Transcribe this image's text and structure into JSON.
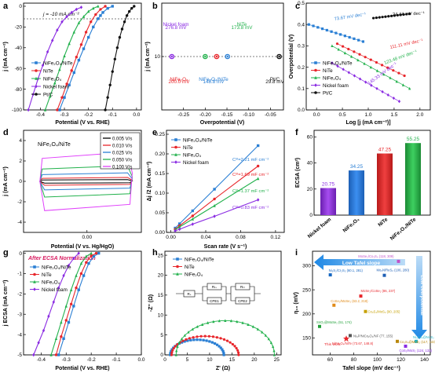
{
  "colors": {
    "nfo": "#2a7fd4",
    "nite": "#e8262b",
    "nife": "#22b14c",
    "nf": "#8a2be2",
    "ptc": "#111111",
    "bg": "#ffffff"
  },
  "panels": {
    "a": {
      "letter": "a",
      "xlabel": "Potential (V vs. RHE)",
      "ylabel": "j (mA cm⁻²)",
      "annotation": "j = -10 mA cm⁻²",
      "xticks": [
        "-0.4",
        "-0.3",
        "-0.2",
        "-0.1",
        "0.0"
      ],
      "yticks": [
        "0",
        "-20",
        "-40",
        "-60",
        "-80",
        "-100"
      ],
      "legend": [
        "NiFe₂O₄/NiTe",
        "NiTe",
        "NiFe₂O₄",
        "Nickel foam",
        "Pt/C"
      ]
    },
    "b": {
      "letter": "b",
      "xlabel": "Overpotential (V)",
      "ylabel": "j (mA cm⁻²)",
      "xticks": [
        "-0.25",
        "-0.20",
        "-0.15",
        "-0.10",
        "-0.05"
      ],
      "yticks": [
        "10"
      ],
      "labels": [
        {
          "name": "Nickel foam",
          "value": "276.8 mV"
        },
        {
          "name": "NiTe",
          "value": "173.8 mV"
        },
        {
          "name": "NiFe₂O₄",
          "value": "200.0 mV"
        },
        {
          "name": "NiFe₂O₄/NiTe",
          "value": "148.8 mV"
        },
        {
          "name": "Pt/C",
          "value": "29.8 mV"
        }
      ]
    },
    "c": {
      "letter": "c",
      "xlabel": "Log [j (mA cm⁻²)]",
      "ylabel": "Overpotential (V)",
      "xticks": [
        "0.0",
        "0.5",
        "1.0",
        "1.5",
        "2.0"
      ],
      "yticks": [
        "0.0",
        "0.1",
        "0.2",
        "0.3",
        "0.4",
        "0.5"
      ],
      "slopes": [
        "73.67 mV dec⁻¹",
        "24.44 mV dec⁻¹",
        "111.11 mV dec⁻¹",
        "123.48 mV dec⁻¹",
        "145.33 mV dec⁻¹"
      ],
      "legend": [
        "NiFe₂O₄/NiTe",
        "NiTe",
        "NiFe₂O₄",
        "Nickel foam",
        "Pt/C"
      ]
    },
    "d": {
      "letter": "d",
      "xlabel": "Potential (V vs. Hg/HgO)",
      "ylabel": "j (mA cm⁻²)",
      "inset": "NiFe₂O₄/NiTe",
      "xticks": [
        "0.00"
      ],
      "yticks": [
        "4",
        "2",
        "0",
        "-2",
        "-4"
      ],
      "legend": [
        "0.005 V/s",
        "0.010 V/s",
        "0.025 V/s",
        "0.050 V/s",
        "0.100 V/s"
      ]
    },
    "e": {
      "letter": "e",
      "xlabel": "Scan rate (V s⁻¹)",
      "ylabel": "Δj /2 (mA cm⁻²)",
      "xticks": [
        "0.00",
        "0.04",
        "0.08",
        "0.12"
      ],
      "yticks": [
        "0.00",
        "0.05",
        "0.10",
        "0.15",
        "0.20",
        "0.25"
      ],
      "legend": [
        "NiFe₂O₄/NiTe",
        "NiTe",
        "NiFe₂O₄",
        "Nickel foam"
      ],
      "cdl": [
        "Cᵈˡ=2.21 mF cm⁻²",
        "Cᵈˡ=1.69 mF cm⁻²",
        "Cᵈˡ=1.37 mF cm⁻²",
        "Cᵈˡ=0.83 mF cm⁻²"
      ]
    },
    "f": {
      "letter": "f",
      "ylabel": "ECSA (cm²)",
      "yticks": [
        "0",
        "20",
        "40",
        "60"
      ],
      "categories": [
        "Nickel foam",
        "NiFe₂O₄",
        "NiTe",
        "NiFe₂O₄/NiTe"
      ],
      "value_labels": [
        "20.75",
        "34.25",
        "47.25",
        "55.25"
      ]
    },
    "g": {
      "letter": "g",
      "xlabel": "Potential (V vs. RHE)",
      "ylabel": "j ECSA (mA cm⁻²)",
      "title": "After ECSA Normalization",
      "xticks": [
        "-0.4",
        "-0.3",
        "-0.2",
        "-0.1",
        "0.0"
      ],
      "yticks": [
        "0",
        "-1",
        "-2",
        "-3",
        "-4",
        "-5"
      ],
      "legend": [
        "NiFe₂O₄/NiTe",
        "NiTe",
        "NiFe₂O₄",
        "Nickel foam"
      ]
    },
    "h": {
      "letter": "h",
      "xlabel": "Z' (Ω)",
      "ylabel": "-Z'' (Ω)",
      "xticks": [
        "0",
        "5",
        "10",
        "15",
        "20",
        "25"
      ],
      "yticks": [
        "0",
        "5",
        "10",
        "15",
        "20",
        "25"
      ],
      "legend": [
        "NiFe₂O₄/NiTe",
        "NiTe",
        "NiFe₂O₄"
      ],
      "circuit": [
        "Rₛ",
        "Rₜₛ",
        "CPE1",
        "Rₜₜ",
        "CPE2"
      ]
    },
    "i": {
      "letter": "i",
      "xlabel": "Tafel slope (mV dec⁻¹)",
      "ylabel": "η₁₀ (mV)",
      "arrow_h": "Low Tafel slope",
      "arrow_v": "Low overpotential",
      "xticks": [
        "60",
        "80",
        "100",
        "120",
        "140"
      ],
      "yticks": [
        "150",
        "200",
        "250",
        "300"
      ],
      "refs": [
        {
          "label": "MoSe₂/Co₃S₄ (118, 309)",
          "color": "#c052c8"
        },
        {
          "label": "Ni₃S₂/Cr₂S₃ (60.1, 281)",
          "color": "#1565c0"
        },
        {
          "label": "Mo₂N/ReS₂ (106, 280)",
          "color": "#1e5fb5"
        },
        {
          "label": "MoSe₂/CoSe₂ (86, 237)",
          "color": "#e8262b"
        },
        {
          "label": "CoSe₂/MoSe₂ (63.2, 218)",
          "color": "#e08a18"
        },
        {
          "label": "Co₃S₄/MoS₂ (90, 205)",
          "color": "#c6a000"
        },
        {
          "label": "SnO₂@MoSe₂ (51, 174)",
          "color": "#22a13a"
        },
        {
          "label": "Ni₃Se₄@Ni₃S₂ (133, 143)",
          "color": "#20b5c8"
        },
        {
          "label": "Ni₃P/NiCo₂O₄/NF (77, 155)",
          "color": "#555555"
        },
        {
          "label": "Co₃S₄@MoS₂ (117, 143)",
          "color": "#b8860b"
        },
        {
          "label": "NiFe₂O₄/NiTe (73.67, 148.8)",
          "color": "#e8262b"
        },
        {
          "label": "CoS₂/MoS₂ (124, 133)",
          "color": "#8a2be2"
        }
      ],
      "this_work": "This work"
    }
  },
  "chart_data": [
    {
      "panel": "a",
      "type": "line",
      "title": "",
      "xlabel": "Potential (V vs. RHE)",
      "ylabel": "j (mA cm⁻²)",
      "xlim": [
        -0.47,
        0.02
      ],
      "ylim": [
        -100,
        3
      ],
      "series": [
        {
          "name": "NiFe₂O₄/NiTe",
          "x": [
            -0.32,
            -0.3,
            -0.28,
            -0.26,
            -0.24,
            -0.22,
            -0.2,
            -0.18,
            -0.16,
            -0.15,
            -0.14,
            -0.12,
            -0.1
          ],
          "y": [
            -100,
            -88,
            -76,
            -64,
            -52,
            -41,
            -30,
            -20,
            -12,
            -9,
            -6,
            -2,
            0
          ]
        },
        {
          "name": "NiTe",
          "x": [
            -0.33,
            -0.31,
            -0.29,
            -0.27,
            -0.25,
            -0.23,
            -0.21,
            -0.19,
            -0.17,
            -0.15,
            -0.13
          ],
          "y": [
            -100,
            -88,
            -75,
            -62,
            -49,
            -37,
            -25,
            -15,
            -8,
            -3,
            0
          ]
        },
        {
          "name": "NiFe₂O₄",
          "x": [
            -0.38,
            -0.36,
            -0.34,
            -0.32,
            -0.3,
            -0.28,
            -0.26,
            -0.24,
            -0.22,
            -0.2,
            -0.18,
            -0.16
          ],
          "y": [
            -100,
            -87,
            -74,
            -61,
            -48,
            -36,
            -25,
            -16,
            -10,
            -5,
            -2,
            0
          ]
        },
        {
          "name": "Nickel foam",
          "x": [
            -0.45,
            -0.43,
            -0.41,
            -0.39,
            -0.37,
            -0.35,
            -0.33,
            -0.31,
            -0.29,
            -0.27,
            -0.25,
            -0.23
          ],
          "y": [
            -100,
            -85,
            -70,
            -57,
            -44,
            -33,
            -23,
            -15,
            -10,
            -6,
            -3,
            -1
          ]
        },
        {
          "name": "Pt/C",
          "x": [
            -0.13,
            -0.12,
            -0.11,
            -0.1,
            -0.09,
            -0.08,
            -0.07,
            -0.06,
            -0.05,
            -0.04,
            -0.03,
            -0.02,
            -0.01
          ],
          "y": [
            -100,
            -88,
            -76,
            -63,
            -51,
            -40,
            -30,
            -22,
            -15,
            -9,
            -5,
            -2,
            0
          ]
        }
      ]
    },
    {
      "panel": "b",
      "type": "scatter",
      "title": "",
      "xlabel": "Overpotential (V)",
      "ylabel": "j (mA cm⁻²)",
      "xlim": [
        -0.3,
        -0.02
      ],
      "series": [
        {
          "name": "Nickel foam",
          "x": [
            -0.2768
          ],
          "y": [
            10
          ]
        },
        {
          "name": "NiFe₂O₄",
          "x": [
            -0.2
          ],
          "y": [
            10
          ]
        },
        {
          "name": "NiTe",
          "x": [
            -0.1738
          ],
          "y": [
            10
          ]
        },
        {
          "name": "NiFe₂O₄/NiTe",
          "x": [
            -0.1488
          ],
          "y": [
            10
          ]
        },
        {
          "name": "Pt/C",
          "x": [
            -0.0298
          ],
          "y": [
            10
          ]
        }
      ]
    },
    {
      "panel": "c",
      "type": "scatter",
      "title": "",
      "xlabel": "Log [j (mA cm⁻²)]",
      "ylabel": "Overpotential (V)",
      "xlim": [
        -0.2,
        2.2
      ],
      "ylim": [
        0,
        0.5
      ],
      "series": [
        {
          "name": "Pt/C",
          "x": [
            1.1,
            1.8
          ],
          "y": [
            0.43,
            0.45
          ]
        },
        {
          "name": "NiFe₂O₄/NiTe",
          "x": [
            -0.15,
            0.9
          ],
          "y": [
            0.4,
            0.32
          ]
        },
        {
          "name": "NiTe",
          "x": [
            0.4,
            1.7
          ],
          "y": [
            0.31,
            0.16
          ]
        },
        {
          "name": "NiFe₂O₄",
          "x": [
            0.3,
            1.8
          ],
          "y": [
            0.3,
            0.1
          ]
        },
        {
          "name": "Nickel foam",
          "x": [
            0.3,
            1.6
          ],
          "y": [
            0.22,
            0.04
          ]
        }
      ]
    },
    {
      "panel": "d",
      "type": "line",
      "title": "",
      "xlabel": "Potential (V vs. Hg/HgO)",
      "ylabel": "j (mA cm⁻²)",
      "xlim": [
        -0.07,
        0.06
      ],
      "ylim": [
        -5,
        5
      ],
      "series": [
        {
          "name": "0.005 V/s",
          "x": [
            -0.05,
            0.05
          ],
          "y": [
            0.2,
            -0.2
          ]
        },
        {
          "name": "0.010 V/s",
          "x": [
            -0.05,
            0.05
          ],
          "y": [
            0.4,
            -0.4
          ]
        },
        {
          "name": "0.025 V/s",
          "x": [
            -0.05,
            0.05
          ],
          "y": [
            1.0,
            -1.0
          ]
        },
        {
          "name": "0.050 V/s",
          "x": [
            -0.05,
            0.05
          ],
          "y": [
            2.0,
            -2.0
          ]
        },
        {
          "name": "0.100 V/s",
          "x": [
            -0.05,
            0.05
          ],
          "y": [
            4.0,
            -3.8
          ]
        }
      ]
    },
    {
      "panel": "e",
      "type": "line",
      "title": "",
      "xlabel": "Scan rate (V s⁻¹)",
      "ylabel": "Δj /2 (mA cm⁻²)",
      "xlim": [
        -0.005,
        0.13
      ],
      "ylim": [
        0,
        0.26
      ],
      "series": [
        {
          "name": "NiFe₂O₄/NiTe",
          "x": [
            0.005,
            0.01,
            0.025,
            0.05,
            0.1
          ],
          "y": [
            0.011,
            0.022,
            0.055,
            0.11,
            0.221
          ]
        },
        {
          "name": "NiTe",
          "x": [
            0.005,
            0.01,
            0.025,
            0.05,
            0.1
          ],
          "y": [
            0.008,
            0.017,
            0.042,
            0.085,
            0.169
          ]
        },
        {
          "name": "NiFe₂O₄",
          "x": [
            0.005,
            0.01,
            0.025,
            0.05,
            0.1
          ],
          "y": [
            0.007,
            0.014,
            0.034,
            0.068,
            0.137
          ]
        },
        {
          "name": "Nickel foam",
          "x": [
            0.005,
            0.01,
            0.025,
            0.05,
            0.1
          ],
          "y": [
            0.004,
            0.008,
            0.021,
            0.041,
            0.083
          ]
        }
      ]
    },
    {
      "panel": "f",
      "type": "bar",
      "title": "",
      "xlabel": "",
      "ylabel": "ECSA (cm²)",
      "ylim": [
        0,
        65
      ],
      "categories": [
        "Nickel foam",
        "NiFe₂O₄",
        "NiTe",
        "NiFe₂O₄/NiTe"
      ],
      "values": [
        20.75,
        34.25,
        47.25,
        55.25
      ]
    },
    {
      "panel": "g",
      "type": "line",
      "title": "After ECSA Normalization",
      "xlabel": "Potential (V vs. RHE)",
      "ylabel": "j ECSA (mA cm⁻²)",
      "xlim": [
        -0.47,
        0.0
      ],
      "ylim": [
        -5,
        0.1
      ],
      "series": [
        {
          "name": "NiFe₂O₄/NiTe",
          "x": [
            -0.33,
            -0.31,
            -0.29,
            -0.27,
            -0.25,
            -0.23,
            -0.21,
            -0.19,
            -0.17
          ],
          "y": [
            -5,
            -4.2,
            -3.4,
            -2.6,
            -1.8,
            -1.1,
            -0.5,
            -0.15,
            0
          ]
        },
        {
          "name": "NiTe",
          "x": [
            -0.34,
            -0.32,
            -0.3,
            -0.28,
            -0.26,
            -0.24,
            -0.22,
            -0.2,
            -0.18
          ],
          "y": [
            -5,
            -4.1,
            -3.3,
            -2.5,
            -1.7,
            -1.0,
            -0.45,
            -0.12,
            0
          ]
        },
        {
          "name": "NiFe₂O₄",
          "x": [
            -0.36,
            -0.34,
            -0.32,
            -0.3,
            -0.28,
            -0.26,
            -0.24,
            -0.22,
            -0.2
          ],
          "y": [
            -5,
            -4.2,
            -3.4,
            -2.6,
            -1.8,
            -1.1,
            -0.5,
            -0.15,
            0
          ]
        },
        {
          "name": "Nickel foam",
          "x": [
            -0.43,
            -0.41,
            -0.39,
            -0.37,
            -0.35,
            -0.33,
            -0.31,
            -0.29,
            -0.27,
            -0.25
          ],
          "y": [
            -5,
            -4.4,
            -3.8,
            -3.1,
            -2.4,
            -1.7,
            -1.1,
            -0.6,
            -0.25,
            0
          ]
        }
      ]
    },
    {
      "panel": "h",
      "type": "scatter",
      "title": "",
      "xlabel": "Z' (Ω)",
      "ylabel": "-Z'' (Ω)",
      "xlim": [
        0,
        26
      ],
      "ylim": [
        0,
        26
      ],
      "series": [
        {
          "name": "NiFe₂O₄/NiTe",
          "center": 7.2,
          "radius": 6.0,
          "peak": 3.8
        },
        {
          "name": "NiTe",
          "center": 9.0,
          "radius": 7.5,
          "peak": 4.7
        },
        {
          "name": "NiFe₂O₄",
          "center": 13.5,
          "radius": 11.0,
          "peak": 8.6
        }
      ]
    },
    {
      "panel": "i",
      "type": "scatter",
      "title": "",
      "xlabel": "Tafel slope (mV dec⁻¹)",
      "ylabel": "η₁₀ (mV)",
      "xlim": [
        45,
        145
      ],
      "ylim": [
        115,
        330
      ],
      "x": [
        118,
        60.1,
        106,
        86,
        63.2,
        90,
        51,
        133,
        77,
        117,
        73.67,
        124
      ],
      "y": [
        309,
        281,
        280,
        237,
        218,
        205,
        174,
        143,
        155,
        143,
        148.8,
        133
      ]
    }
  ]
}
